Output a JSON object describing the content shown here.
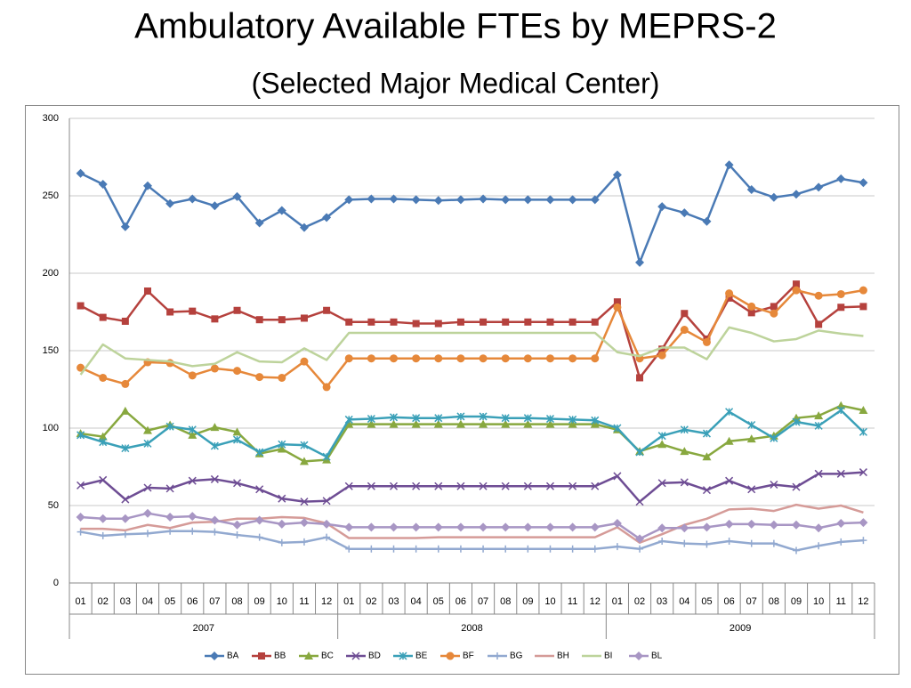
{
  "chart_data": {
    "type": "line",
    "title": "Ambulatory Available FTEs by MEPRS-2",
    "subtitle": "(Selected Major Medical Center)",
    "categories": [
      "01",
      "02",
      "03",
      "04",
      "05",
      "06",
      "07",
      "08",
      "09",
      "10",
      "11",
      "12",
      "01",
      "02",
      "03",
      "04",
      "05",
      "06",
      "07",
      "08",
      "09",
      "10",
      "11",
      "12",
      "01",
      "02",
      "03",
      "04",
      "05",
      "06",
      "07",
      "08",
      "09",
      "10",
      "11",
      "12"
    ],
    "year_groups": [
      "2007",
      "2008",
      "2009"
    ],
    "ylim": [
      0,
      300
    ],
    "yticks": [
      0,
      50,
      100,
      150,
      200,
      250,
      300
    ],
    "grid": true,
    "legend": "bottom",
    "series": [
      {
        "name": "BA",
        "color": "#4a7ab5",
        "marker": "diamond",
        "values": [
          264.5,
          257.5,
          230,
          256.5,
          245,
          248,
          243.5,
          249.5,
          232.5,
          240.5,
          229.5,
          236,
          247.5,
          248,
          248,
          247.5,
          247,
          247.5,
          248,
          247.5,
          247.5,
          247.5,
          247.5,
          247.5,
          263.5,
          207,
          243,
          239,
          233.5,
          270,
          254,
          249,
          251,
          255.5,
          261,
          258.5
        ]
      },
      {
        "name": "BB",
        "color": "#b5413d",
        "marker": "square",
        "values": [
          179,
          171.5,
          169,
          188.5,
          175,
          175.5,
          170.5,
          176,
          170,
          170,
          171,
          176,
          168.5,
          168.5,
          168.5,
          167.5,
          167.5,
          168.5,
          168.5,
          168.5,
          168.5,
          168.5,
          168.5,
          168.5,
          181.5,
          132.5,
          151,
          174,
          157.5,
          184,
          174.5,
          178.5,
          193,
          167,
          178,
          178.5
        ]
      },
      {
        "name": "BC",
        "color": "#88a83f",
        "marker": "triangle",
        "values": [
          96.5,
          94.5,
          111,
          98.5,
          102,
          95.5,
          100.5,
          97.5,
          83.5,
          86.5,
          78.5,
          79.5,
          102.5,
          102.5,
          102.5,
          102.5,
          102.5,
          102.5,
          102.5,
          102.5,
          102.5,
          102.5,
          102.5,
          102.5,
          99,
          85,
          89.5,
          85,
          81.5,
          91.5,
          93,
          95,
          106.5,
          108,
          114.5,
          111.5
        ]
      },
      {
        "name": "BD",
        "color": "#6e4d94",
        "marker": "x",
        "values": [
          63,
          66.5,
          54,
          61.5,
          61,
          66,
          67,
          64.5,
          60.5,
          54.5,
          52.5,
          53,
          62.5,
          62.5,
          62.5,
          62.5,
          62.5,
          62.5,
          62.5,
          62.5,
          62.5,
          62.5,
          62.5,
          62.5,
          69,
          52.5,
          64.5,
          65,
          60,
          66,
          60.5,
          63.5,
          62,
          70.5,
          70.5,
          71.5
        ]
      },
      {
        "name": "BE",
        "color": "#3aa0b8",
        "marker": "asterisk",
        "values": [
          95.5,
          91,
          87,
          90,
          101,
          99,
          88.5,
          92.5,
          84.5,
          89.5,
          89,
          81.5,
          105.5,
          106,
          107,
          106.5,
          106.5,
          107.5,
          107.5,
          106.5,
          106.5,
          106,
          105.5,
          105,
          100,
          84.5,
          95,
          99,
          96.5,
          110.5,
          102,
          93.5,
          104,
          101.5,
          111.5,
          97.5
        ]
      },
      {
        "name": "BF",
        "color": "#e6883a",
        "marker": "circle",
        "values": [
          139,
          132.5,
          128.5,
          142.5,
          142,
          134,
          138.5,
          137,
          133,
          132.5,
          143,
          126.5,
          145,
          145,
          145,
          145,
          145,
          145,
          145,
          145,
          145,
          145,
          145,
          145,
          178,
          145,
          147,
          163.5,
          155.5,
          187,
          178.5,
          174,
          189,
          185.5,
          186.5,
          189
        ]
      },
      {
        "name": "BG",
        "color": "#92a9d0",
        "marker": "plus",
        "values": [
          33,
          30.5,
          31.5,
          32,
          33.5,
          33.5,
          33,
          31,
          29.5,
          26,
          26.5,
          29.5,
          22,
          22,
          22,
          22,
          22,
          22,
          22,
          22,
          22,
          22,
          22,
          22,
          23.5,
          22,
          27,
          25.5,
          25,
          27,
          25.5,
          25.5,
          21,
          24,
          26.5,
          27.5
        ]
      },
      {
        "name": "BH",
        "color": "#d59b98",
        "marker": "none",
        "values": [
          35,
          35,
          34,
          37.5,
          35.5,
          39,
          39.5,
          41.5,
          41.5,
          42.5,
          42,
          38.5,
          29,
          29,
          29,
          29,
          29.5,
          29.5,
          29.5,
          29.5,
          29.5,
          29.5,
          29.5,
          29.5,
          36,
          26,
          31.5,
          37.5,
          41.5,
          47.5,
          48,
          46.5,
          50.5,
          48,
          50,
          45.5
        ]
      },
      {
        "name": "BI",
        "color": "#bdd39b",
        "marker": "none",
        "values": [
          134.5,
          154,
          145,
          144,
          143,
          140,
          141.5,
          149,
          143,
          142.5,
          151.5,
          144,
          161.5,
          161.5,
          161.5,
          161.5,
          161.5,
          161.5,
          161.5,
          161.5,
          161.5,
          161.5,
          161.5,
          161.5,
          149,
          146.5,
          152,
          152,
          144.5,
          165,
          161.5,
          156,
          157.5,
          163,
          161,
          159.5
        ]
      },
      {
        "name": "BL",
        "color": "#a896c4",
        "marker": "diamond",
        "values": [
          42.5,
          41.5,
          41.5,
          45,
          42.5,
          43,
          40.5,
          37.5,
          40.5,
          38,
          39,
          38,
          36,
          36,
          36,
          36,
          36,
          36,
          36,
          36,
          36,
          36,
          36,
          36,
          38.5,
          28.5,
          35.5,
          35.5,
          36,
          38,
          38,
          37.5,
          37.5,
          35.5,
          38.5,
          39
        ]
      }
    ]
  }
}
